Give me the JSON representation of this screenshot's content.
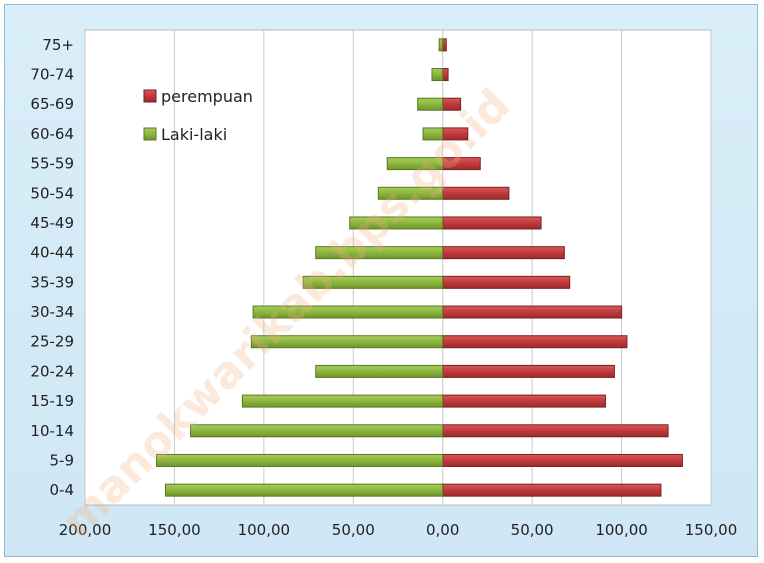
{
  "chart_data": {
    "type": "bar",
    "orientation": "horizontal",
    "title": "",
    "xlabel": "",
    "ylabel": "",
    "categories": [
      "0-4",
      "5-9",
      "10-14",
      "15-19",
      "20-24",
      "25-29",
      "30-34",
      "35-39",
      "40-44",
      "45-49",
      "50-54",
      "55-59",
      "60-64",
      "65-69",
      "70-74",
      "75+"
    ],
    "x_tick_labels": [
      "200,00",
      "150,00",
      "100,00",
      "50,00",
      "0,00",
      "50,00",
      "100,00",
      "150,00"
    ],
    "xlim": [
      -200,
      150
    ],
    "grid": true,
    "legend_position": "top-left",
    "series": [
      {
        "name": "perempuan",
        "color": "#c0393b",
        "values": [
          122,
          134,
          126,
          91,
          96,
          103,
          100,
          71,
          68,
          55,
          37,
          21,
          14,
          10,
          3,
          2
        ]
      },
      {
        "name": "Laki-laki",
        "color": "#8db63f",
        "values": [
          -155,
          -160,
          -141,
          -112,
          -71,
          -107,
          -106,
          -78,
          -71,
          -52,
          -36,
          -31,
          -11,
          -14,
          -6,
          -2
        ]
      }
    ]
  },
  "watermark": "manokwarikab.bps.go.id"
}
